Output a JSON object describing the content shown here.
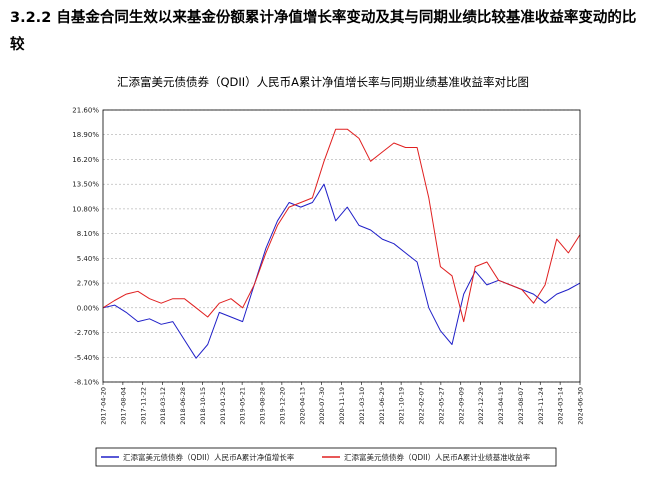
{
  "report": {
    "section_heading": "3.2.2 自基金合同生效以来基金份额累计净值增长率变动及其与同期业绩比较基准收益率变动的比较"
  },
  "chart_data": {
    "type": "line",
    "title": "汇添富美元债债券（QDII）人民币A累计净值增长率与同期业绩基准收益率对比图",
    "xlabel": "",
    "ylabel": "",
    "ylim": [
      -8.1,
      21.6
    ],
    "y_ticks": [
      "21.60%",
      "18.90%",
      "16.20%",
      "13.50%",
      "10.80%",
      "8.10%",
      "5.40%",
      "2.70%",
      "0.00%",
      "-2.70%",
      "-5.40%",
      "-8.10%"
    ],
    "y_tick_values": [
      21.6,
      18.9,
      16.2,
      13.5,
      10.8,
      8.1,
      5.4,
      2.7,
      0.0,
      -2.7,
      -5.4,
      -8.1
    ],
    "x_ticks": [
      "2017-04-20",
      "2017-08-04",
      "2017-11-22",
      "2018-03-12",
      "2018-06-28",
      "2018-10-15",
      "2019-01-25",
      "2019-05-21",
      "2019-08-28",
      "2019-12-20",
      "2020-04-13",
      "2020-07-30",
      "2020-11-19",
      "2021-03-10",
      "2021-06-29",
      "2021-10-19",
      "2022-02-07",
      "2022-05-27",
      "2022-09-09",
      "2022-12-29",
      "2023-04-19",
      "2023-08-07",
      "2023-11-24",
      "2024-03-14",
      "2024-06-30"
    ],
    "grid": true,
    "legend_position": "bottom",
    "series": [
      {
        "name": "汇添富美元债债券（QDII）人民币A累计净值增长率",
        "color": "#2020c8",
        "values": [
          0.0,
          0.3,
          -0.5,
          -1.5,
          -1.2,
          -1.8,
          -1.5,
          -3.5,
          -5.5,
          -4.0,
          -0.5,
          -1.0,
          -1.5,
          2.5,
          6.5,
          9.5,
          11.5,
          11.0,
          11.5,
          13.5,
          9.5,
          11.0,
          9.0,
          8.5,
          7.5,
          7.0,
          6.0,
          5.0,
          0.0,
          -2.5,
          -4.0,
          1.5,
          4.0,
          2.5,
          3.0,
          2.5,
          2.0,
          1.5,
          0.5,
          1.5,
          2.0,
          2.7
        ]
      },
      {
        "name": "汇添富美元债债券（QDII）人民币A累计业绩基准收益率",
        "color": "#e02020",
        "values": [
          0.0,
          0.8,
          1.5,
          1.8,
          1.0,
          0.5,
          1.0,
          1.0,
          0.0,
          -1.0,
          0.5,
          1.0,
          0.0,
          2.5,
          6.0,
          9.0,
          11.0,
          11.5,
          12.0,
          16.0,
          19.5,
          19.5,
          18.5,
          16.0,
          17.0,
          18.0,
          17.5,
          17.5,
          12.0,
          4.5,
          3.5,
          -1.5,
          4.5,
          5.0,
          3.0,
          2.5,
          2.0,
          0.5,
          2.5,
          7.5,
          6.0,
          8.0
        ]
      }
    ]
  }
}
